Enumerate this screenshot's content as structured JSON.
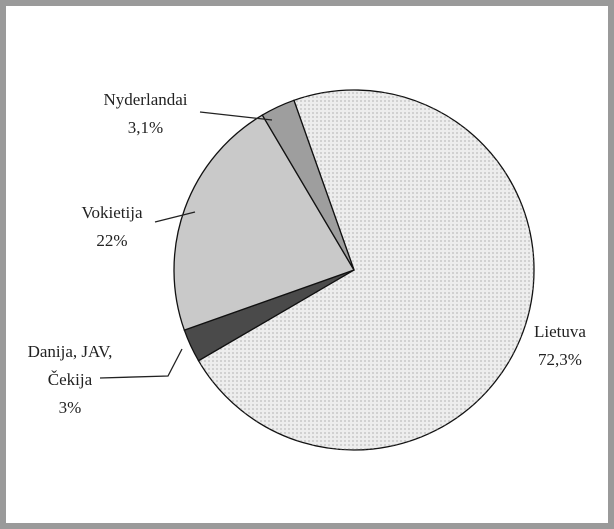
{
  "chart_data": {
    "type": "pie",
    "categories": [
      "Lietuva",
      "Danija, JAV, Čekija",
      "Vokietija",
      "Nyderlandai"
    ],
    "values": [
      72.3,
      3,
      22,
      3.1
    ],
    "value_labels": [
      "72,3%",
      "3%",
      "22%",
      "3,1%"
    ],
    "colors": [
      "#ededed",
      "#4a4a4a",
      "#c9c9c9",
      "#9e9e9e"
    ]
  }
}
